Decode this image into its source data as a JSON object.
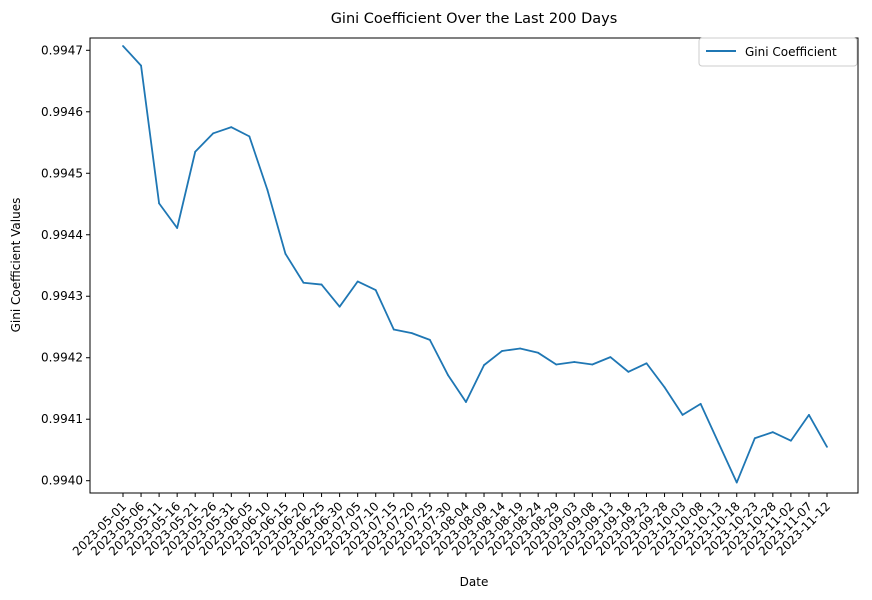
{
  "chart_data": {
    "type": "line",
    "title": "Gini Coefficient Over the Last 200 Days",
    "xlabel": "Date",
    "ylabel": "Gini Coefficient Values",
    "ylim": [
      0.99398,
      0.99472
    ],
    "yticks": [
      "0.9940",
      "0.9941",
      "0.9942",
      "0.9943",
      "0.9944",
      "0.9945",
      "0.9946",
      "0.9947"
    ],
    "grid": false,
    "legend_position": "top-right",
    "categories": [
      "2023-05-01",
      "2023-05-06",
      "2023-05-11",
      "2023-05-16",
      "2023-05-21",
      "2023-05-26",
      "2023-05-31",
      "2023-06-05",
      "2023-06-10",
      "2023-06-15",
      "2023-06-20",
      "2023-06-25",
      "2023-06-30",
      "2023-07-05",
      "2023-07-10",
      "2023-07-15",
      "2023-07-20",
      "2023-07-25",
      "2023-07-30",
      "2023-08-04",
      "2023-08-09",
      "2023-08-14",
      "2023-08-19",
      "2023-08-24",
      "2023-08-29",
      "2023-09-03",
      "2023-09-08",
      "2023-09-13",
      "2023-09-18",
      "2023-09-23",
      "2023-09-28",
      "2023-10-03",
      "2023-10-08",
      "2023-10-13",
      "2023-10-18",
      "2023-10-23",
      "2023-10-28",
      "2023-11-02",
      "2023-11-07",
      "2023-11-12"
    ],
    "series": [
      {
        "name": "Gini Coefficient",
        "color": "#1f77b4",
        "values": [
          0.994707,
          0.994675,
          0.994451,
          0.994411,
          0.994535,
          0.994565,
          0.994575,
          0.99456,
          0.994473,
          0.994369,
          0.994322,
          0.994319,
          0.994283,
          0.994324,
          0.99431,
          0.994246,
          0.99424,
          0.994229,
          0.994172,
          0.994128,
          0.994188,
          0.994211,
          0.994215,
          0.994208,
          0.994189,
          0.994193,
          0.994189,
          0.994201,
          0.994177,
          0.994191,
          0.994152,
          0.994107,
          0.994125,
          0.994061,
          0.993997,
          0.994069,
          0.994079,
          0.994065,
          0.994107,
          0.994055
        ]
      }
    ]
  }
}
